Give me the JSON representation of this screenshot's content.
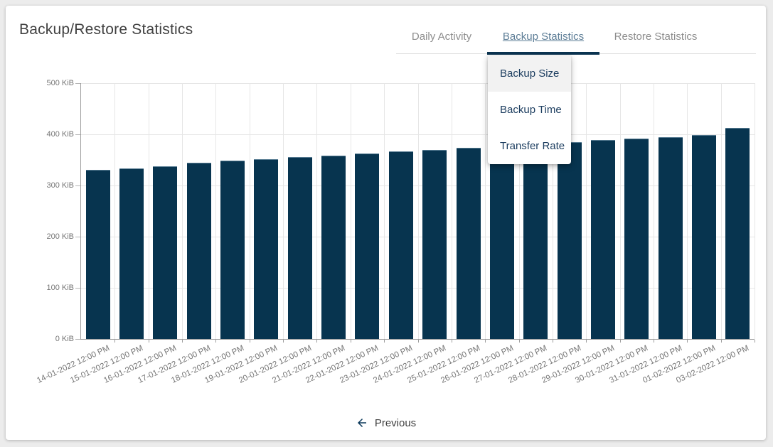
{
  "page": {
    "title": "Backup/Restore Statistics"
  },
  "tabs": [
    {
      "label": "Daily Activity",
      "active": false
    },
    {
      "label": "Backup Statistics",
      "active": true
    },
    {
      "label": "Restore Statistics",
      "active": false
    }
  ],
  "dropdown": {
    "items": [
      {
        "label": "Backup Size",
        "highlighted": true
      },
      {
        "label": "Backup Time",
        "highlighted": false
      },
      {
        "label": "Transfer Rate",
        "highlighted": false
      }
    ]
  },
  "pagination": {
    "previous_label": "Previous"
  },
  "colors": {
    "bar": "#07344f",
    "tab_indicator": "#0a3350",
    "active_tab_text": "#5e7e97",
    "inactive_tab_text": "#8d8d8d",
    "grid": "#e6e6e6",
    "axis": "#9e9e9e",
    "axis_label": "#757575",
    "menu_text": "#1d3e60",
    "menu_highlight": "#f2f2f2"
  },
  "chart_data": {
    "type": "bar",
    "title": "",
    "xlabel": "",
    "ylabel": "",
    "unit": "KiB",
    "ylim": [
      0,
      500
    ],
    "y_ticks": [
      "0 KiB",
      "100 KiB",
      "200 KiB",
      "300 KiB",
      "400 KiB",
      "500 KiB"
    ],
    "grid": true,
    "legend": false,
    "categories": [
      "14-01-2022 12:00 PM",
      "15-01-2022 12:00 PM",
      "16-01-2022 12:00 PM",
      "17-01-2022 12:00 PM",
      "18-01-2022 12:00 PM",
      "19-01-2022 12:00 PM",
      "20-01-2022 12:00 PM",
      "21-01-2022 12:00 PM",
      "22-01-2022 12:00 PM",
      "23-01-2022 12:00 PM",
      "24-01-2022 12:00 PM",
      "25-01-2022 12:00 PM",
      "26-01-2022 12:00 PM",
      "27-01-2022 12:00 PM",
      "28-01-2022 12:00 PM",
      "29-01-2022 12:00 PM",
      "30-01-2022 12:00 PM",
      "31-01-2022 12:00 PM",
      "01-02-2022 12:00 PM",
      "03-02-2022 12:00 PM"
    ],
    "values": [
      331,
      334,
      337,
      344,
      349,
      352,
      355,
      359,
      363,
      366,
      369,
      373,
      376,
      380,
      385,
      389,
      392,
      394,
      398,
      413
    ]
  }
}
